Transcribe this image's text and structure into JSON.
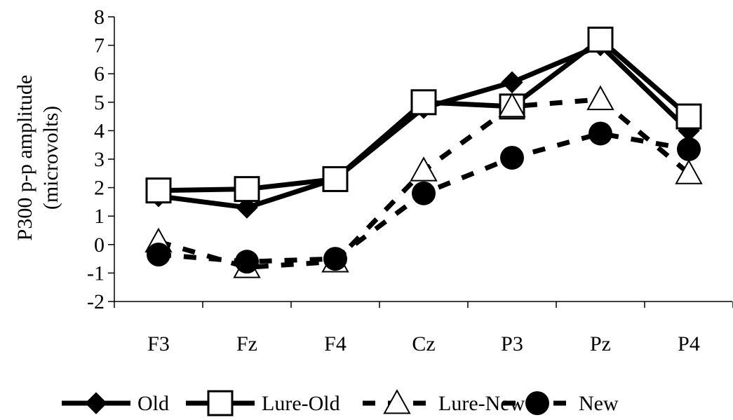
{
  "chart_data": {
    "type": "line",
    "title": "",
    "ylabel_lines": [
      "P300 p-p amplitude",
      "(microvolts)"
    ],
    "xlabel": "",
    "categories": [
      "F3",
      "Fz",
      "F4",
      "Cz",
      "P3",
      "Pz",
      "P4"
    ],
    "ylim": [
      -2,
      8
    ],
    "yticks": [
      -2,
      -1,
      0,
      1,
      2,
      3,
      4,
      5,
      6,
      7,
      8
    ],
    "grid": false,
    "legend_position": "bottom",
    "series": [
      {
        "name": "Old",
        "line": "solid",
        "marker": "diamond",
        "color": "#000000",
        "values": [
          1.7,
          1.3,
          2.3,
          4.8,
          5.7,
          7.0,
          4.0
        ]
      },
      {
        "name": "Lure-Old",
        "line": "solid",
        "marker": "square-open",
        "color": "#000000",
        "values": [
          1.9,
          1.95,
          2.3,
          5.0,
          4.85,
          7.2,
          4.5
        ]
      },
      {
        "name": "Lure-New",
        "line": "dashed",
        "marker": "triangle-open",
        "color": "#000000",
        "values": [
          0.1,
          -0.8,
          -0.6,
          2.6,
          4.85,
          5.1,
          2.5
        ]
      },
      {
        "name": "New",
        "line": "dashed",
        "marker": "circle",
        "color": "#000000",
        "values": [
          -0.35,
          -0.6,
          -0.5,
          1.8,
          3.05,
          3.9,
          3.35
        ]
      }
    ]
  }
}
